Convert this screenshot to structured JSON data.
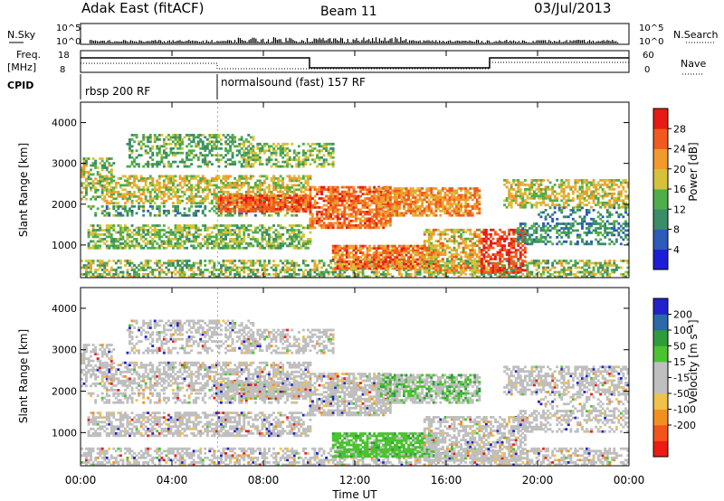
{
  "header": {
    "site": "Adak East (fitACF)",
    "beam": "Beam 11",
    "date": "03/Jul/2013"
  },
  "strips": {
    "nsky_label": "N.Sky",
    "nsearch_label": "N.Search",
    "nsky_ticks": [
      "10^5",
      "10^0"
    ],
    "freq_label_1": "Freq.",
    "freq_label_2": "[MHz]",
    "freq_ticks": [
      "18",
      "8"
    ],
    "nave_label": "Nave",
    "nave_ticks": [
      "60",
      "0"
    ],
    "cpid_label": "CPID",
    "cpid_segments": [
      {
        "label": "rbsp 200 RF",
        "start_hour": 0,
        "end_hour": 6
      },
      {
        "label": "normalsound (fast) 157 RF",
        "start_hour": 6,
        "end_hour": 24
      }
    ]
  },
  "colors": {
    "power": [
      "#1d1dd6",
      "#2c5bb8",
      "#3a8c6a",
      "#4fae4a",
      "#d6c23a",
      "#f29a2c",
      "#f05a1e",
      "#e81a14"
    ],
    "velocity": [
      "#ee1b12",
      "#f2541c",
      "#f2901f",
      "#f0c24a",
      "#bfbfbf",
      "#bfbfbf",
      "#4bc331",
      "#2f9c3c",
      "#2a6aa8",
      "#2222cc"
    ]
  },
  "chart_data": [
    {
      "type": "heatmap",
      "name": "power",
      "ylabel": "Slant Range [km]",
      "yticks": [
        "1000",
        "2000",
        "3000",
        "4000"
      ],
      "yvalues": [
        1000,
        2000,
        3000,
        4000
      ],
      "ylim": [
        200,
        4500
      ],
      "xlim": [
        0,
        24
      ],
      "colorbar_label": "Power [dB]",
      "colorbar_ticks": [
        "28",
        "24",
        "20",
        "16",
        "12",
        "8",
        "4"
      ],
      "colorbar_values": [
        28,
        24,
        20,
        16,
        12,
        8,
        4
      ],
      "zlim": [
        0,
        32
      ]
    },
    {
      "type": "heatmap",
      "name": "velocity",
      "ylabel": "Slant Range [km]",
      "yticks": [
        "1000",
        "2000",
        "3000",
        "4000"
      ],
      "yvalues": [
        1000,
        2000,
        3000,
        4000
      ],
      "ylim": [
        200,
        4500
      ],
      "xlim": [
        0,
        24
      ],
      "colorbar_label": "Velocity [m s⁻¹]",
      "colorbar_ticks": [
        "200",
        "100",
        "50",
        "15",
        "-15",
        "-50",
        "-100",
        "-200"
      ],
      "zlim": [
        -250,
        250
      ]
    }
  ],
  "xaxis": {
    "ticks": [
      "00:00",
      "04:00",
      "08:00",
      "12:00",
      "16:00",
      "20:00",
      "00:00"
    ],
    "hours": [
      0,
      4,
      8,
      12,
      16,
      20,
      24
    ],
    "label": "Time UT"
  }
}
